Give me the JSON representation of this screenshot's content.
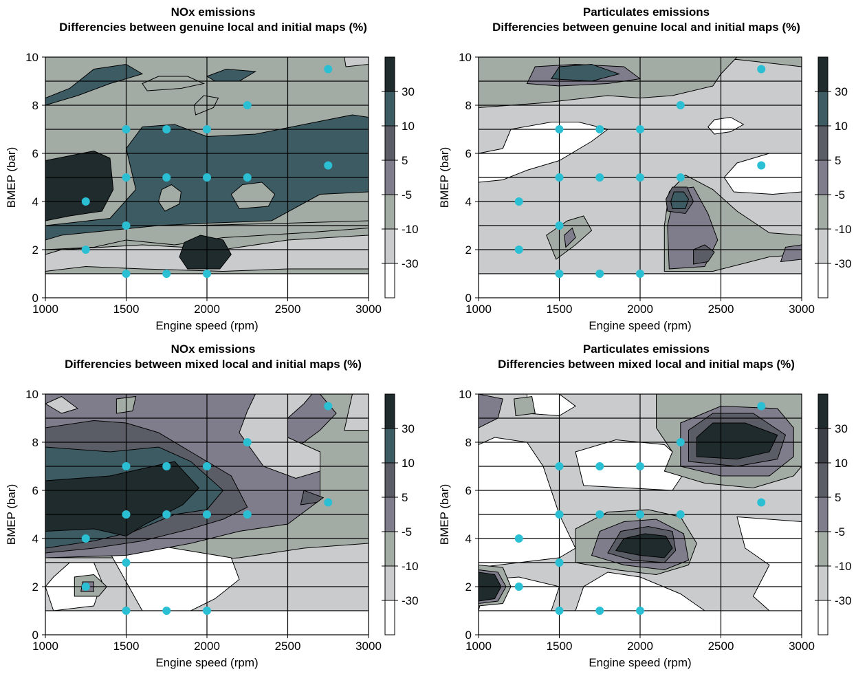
{
  "chart_data": [
    {
      "type": "contour",
      "title": "NOx emissions",
      "subtitle": "Differencies between genuine local and initial maps (%)",
      "xlabel": "Engine speed (rpm)",
      "ylabel": "BMEP (bar)",
      "xlim": [
        1000,
        3000
      ],
      "ylim": [
        0,
        10
      ],
      "xticks": [
        "1000",
        "1500",
        "2000",
        "2500",
        "3000"
      ],
      "yticks": [
        "0",
        "2",
        "4",
        "6",
        "8",
        "10"
      ],
      "grid": true,
      "colorbar": {
        "labels": [
          "30",
          "10",
          "5",
          "-5",
          "-10",
          "-30"
        ],
        "colors": [
          "#1f2b2d",
          "#3d5b63",
          "#5b5d66",
          "#7f7d8b",
          "#a3aba5",
          "#c9cbcc",
          "#ffffff"
        ]
      },
      "measurement_points": [
        {
          "x": 1250,
          "y": 4
        },
        {
          "x": 1250,
          "y": 2
        },
        {
          "x": 1500,
          "y": 7
        },
        {
          "x": 1500,
          "y": 5
        },
        {
          "x": 1500,
          "y": 3
        },
        {
          "x": 1500,
          "y": 1
        },
        {
          "x": 1750,
          "y": 7
        },
        {
          "x": 1750,
          "y": 5
        },
        {
          "x": 1750,
          "y": 1
        },
        {
          "x": 2000,
          "y": 7
        },
        {
          "x": 2000,
          "y": 5
        },
        {
          "x": 2000,
          "y": 1
        },
        {
          "x": 2250,
          "y": 8
        },
        {
          "x": 2250,
          "y": 5
        },
        {
          "x": 2750,
          "y": 9.5
        },
        {
          "x": 2750,
          "y": 5.5
        }
      ]
    },
    {
      "type": "contour",
      "title": "Particulates emissions",
      "subtitle": "Differencies between genuine local and initial maps (%)",
      "xlabel": "Engine speed (rpm)",
      "ylabel": "BMEP (bar)",
      "xlim": [
        1000,
        3000
      ],
      "ylim": [
        0,
        10
      ],
      "xticks": [
        "1000",
        "1500",
        "2000",
        "2500",
        "3000"
      ],
      "yticks": [
        "0",
        "2",
        "4",
        "6",
        "8",
        "10"
      ],
      "grid": true,
      "colorbar": {
        "labels": [
          "30",
          "10",
          "5",
          "-5",
          "-10",
          "-30"
        ],
        "colors": [
          "#1f2b2d",
          "#3d5b63",
          "#5b5d66",
          "#7f7d8b",
          "#a3aba5",
          "#c9cbcc",
          "#ffffff"
        ]
      },
      "measurement_points": [
        {
          "x": 1250,
          "y": 4
        },
        {
          "x": 1250,
          "y": 2
        },
        {
          "x": 1500,
          "y": 7
        },
        {
          "x": 1500,
          "y": 5
        },
        {
          "x": 1500,
          "y": 3
        },
        {
          "x": 1500,
          "y": 1
        },
        {
          "x": 1750,
          "y": 7
        },
        {
          "x": 1750,
          "y": 5
        },
        {
          "x": 1750,
          "y": 1
        },
        {
          "x": 2000,
          "y": 7
        },
        {
          "x": 2000,
          "y": 5
        },
        {
          "x": 2000,
          "y": 1
        },
        {
          "x": 2250,
          "y": 8
        },
        {
          "x": 2250,
          "y": 5
        },
        {
          "x": 2750,
          "y": 9.5
        },
        {
          "x": 2750,
          "y": 5.5
        }
      ]
    },
    {
      "type": "contour",
      "title": "NOx emissions",
      "subtitle": "Differencies between mixed local and initial maps (%)",
      "xlabel": "Engine speed (rpm)",
      "ylabel": "BMEP (bar)",
      "xlim": [
        1000,
        3000
      ],
      "ylim": [
        0,
        10
      ],
      "xticks": [
        "1000",
        "1500",
        "2000",
        "2500",
        "3000"
      ],
      "yticks": [
        "0",
        "2",
        "4",
        "6",
        "8",
        "10"
      ],
      "grid": true,
      "colorbar": {
        "labels": [
          "30",
          "10",
          "5",
          "-5",
          "-10",
          "-30"
        ],
        "colors": [
          "#1f2b2d",
          "#3d5b63",
          "#5b5d66",
          "#7f7d8b",
          "#a3aba5",
          "#c9cbcc",
          "#ffffff"
        ]
      },
      "measurement_points": [
        {
          "x": 1250,
          "y": 4
        },
        {
          "x": 1250,
          "y": 2
        },
        {
          "x": 1500,
          "y": 7
        },
        {
          "x": 1500,
          "y": 5
        },
        {
          "x": 1500,
          "y": 3
        },
        {
          "x": 1500,
          "y": 1
        },
        {
          "x": 1750,
          "y": 7
        },
        {
          "x": 1750,
          "y": 5
        },
        {
          "x": 1750,
          "y": 1
        },
        {
          "x": 2000,
          "y": 7
        },
        {
          "x": 2000,
          "y": 5
        },
        {
          "x": 2000,
          "y": 1
        },
        {
          "x": 2250,
          "y": 8
        },
        {
          "x": 2250,
          "y": 5
        },
        {
          "x": 2750,
          "y": 9.5
        },
        {
          "x": 2750,
          "y": 5.5
        }
      ]
    },
    {
      "type": "contour",
      "title": "Particulates emissions",
      "subtitle": "Differencies between mixed local and initial maps (%)",
      "xlabel": "Engine speed (rpm)",
      "ylabel": "BMEP (bar)",
      "xlim": [
        1000,
        3000
      ],
      "ylim": [
        0,
        10
      ],
      "xticks": [
        "1000",
        "1500",
        "2000",
        "2500",
        "3000"
      ],
      "yticks": [
        "0",
        "2",
        "4",
        "6",
        "8",
        "10"
      ],
      "grid": true,
      "colorbar": {
        "labels": [
          "30",
          "10",
          "5",
          "-5",
          "-10",
          "-30"
        ],
        "colors": [
          "#1f2b2d",
          "#3d4046",
          "#5b5d66",
          "#7f7d8b",
          "#a3aba5",
          "#c9cbcc",
          "#ffffff"
        ]
      },
      "measurement_points": [
        {
          "x": 1250,
          "y": 4
        },
        {
          "x": 1250,
          "y": 2
        },
        {
          "x": 1500,
          "y": 7
        },
        {
          "x": 1500,
          "y": 5
        },
        {
          "x": 1500,
          "y": 3
        },
        {
          "x": 1500,
          "y": 1
        },
        {
          "x": 1750,
          "y": 7
        },
        {
          "x": 1750,
          "y": 5
        },
        {
          "x": 1750,
          "y": 1
        },
        {
          "x": 2000,
          "y": 7
        },
        {
          "x": 2000,
          "y": 5
        },
        {
          "x": 2000,
          "y": 1
        },
        {
          "x": 2250,
          "y": 8
        },
        {
          "x": 2250,
          "y": 5
        },
        {
          "x": 2750,
          "y": 9.5
        },
        {
          "x": 2750,
          "y": 5.5
        }
      ]
    }
  ],
  "style": {
    "point_color": "#2bbfd4",
    "grid_color": "#000000"
  }
}
